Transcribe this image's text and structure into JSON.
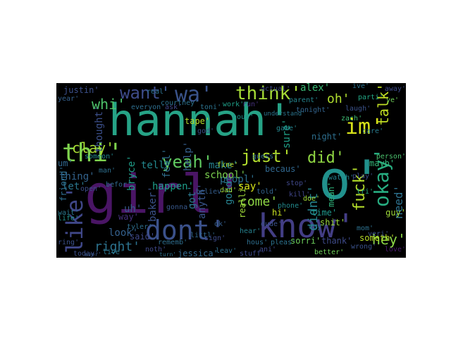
{
  "wordcloud": {
    "words": [
      {
        "text": "hannah'",
        "color": "#26a386"
      },
      {
        "text": "girl'",
        "color": "#4a1565"
      },
      {
        "text": "o'",
        "color": "#21918c"
      },
      {
        "text": "know'",
        "color": "#433e85"
      },
      {
        "text": "dont'",
        "color": "#3b518b"
      },
      {
        "text": "thi'",
        "color": "#7fd34e"
      },
      {
        "text": "like'",
        "color": "#3f4788"
      },
      {
        "text": "want'",
        "color": "#3e4c8a"
      },
      {
        "text": "wa'",
        "color": "#3a538b"
      },
      {
        "text": "think'",
        "color": "#a5db36"
      },
      {
        "text": "im'",
        "color": "#d8e219"
      },
      {
        "text": "just'",
        "color": "#b2dd2d"
      },
      {
        "text": "yeah'",
        "color": "#60ca60"
      },
      {
        "text": "did'",
        "color": "#90d743"
      },
      {
        "text": "okay'",
        "color": "#27ad81"
      },
      {
        "text": "fuck'",
        "color": "#b5de2b"
      },
      {
        "text": "talk'",
        "color": "#c2df23"
      },
      {
        "text": "whi'",
        "color": "#4ec36b"
      },
      {
        "text": "clay'",
        "color": "#a8db34"
      },
      {
        "text": "oh'",
        "color": "#b0dd2f"
      },
      {
        "text": "hey'",
        "color": "#8bd646"
      },
      {
        "text": "need'",
        "color": "#2d718e"
      },
      {
        "text": "right'",
        "color": "#2c728e"
      },
      {
        "text": "didnt'",
        "color": "#25848e"
      },
      {
        "text": "come'",
        "color": "#8ed645"
      },
      {
        "text": "alex'",
        "color": "#3aba76"
      },
      {
        "text": "peopl'",
        "color": "#2d708e"
      },
      {
        "text": "look'",
        "color": "#34608d"
      },
      {
        "text": "bryce'",
        "color": "#1f9e89"
      },
      {
        "text": "tell'",
        "color": "#23888e"
      },
      {
        "text": "school'",
        "color": "#7cd250"
      },
      {
        "text": "thought'",
        "color": "#3c4f8a"
      },
      {
        "text": "let'",
        "color": "#2a778e"
      },
      {
        "text": "sure'",
        "color": "#1fa188"
      },
      {
        "text": "say'",
        "color": "#d5e21a"
      },
      {
        "text": "got'",
        "color": "#2a788e"
      },
      {
        "text": "good'",
        "color": "#26818e"
      },
      {
        "text": "feel'",
        "color": "#2e6e8e"
      },
      {
        "text": "help'",
        "color": "#355f8d"
      },
      {
        "text": "make'",
        "color": "#26828e"
      },
      {
        "text": "happen'",
        "color": "#1e9c89"
      },
      {
        "text": "thing'",
        "color": "#33638d"
      },
      {
        "text": "uh'",
        "color": "#375a8c"
      },
      {
        "text": "baker'",
        "color": "#3b528b"
      },
      {
        "text": "anyth'",
        "color": "#39568c"
      },
      {
        "text": "said'",
        "color": "#3f4889"
      },
      {
        "text": "jessica'",
        "color": "#31688e"
      },
      {
        "text": "sorri'",
        "color": "#6ccd5a"
      },
      {
        "text": "thank'",
        "color": "#3e4a89"
      },
      {
        "text": "someth'",
        "color": "#b8de29"
      },
      {
        "text": "shit'",
        "color": "#9bd93c"
      },
      {
        "text": "mean'",
        "color": "#2fb47c"
      },
      {
        "text": "realli'",
        "color": "#a0da39"
      },
      {
        "text": "guy'",
        "color": "#9fda3a"
      },
      {
        "text": "friend'",
        "color": "#2e6d8e"
      },
      {
        "text": "way'",
        "color": "#46327e"
      },
      {
        "text": "justin'",
        "color": "#3c508b"
      },
      {
        "text": "tape'",
        "color": "#b5de2b"
      },
      {
        "text": "becaus'",
        "color": "#31678e"
      },
      {
        "text": "night'",
        "color": "#2e6f8e"
      },
      {
        "text": "time'",
        "color": "#1f988b"
      },
      {
        "text": "day'",
        "color": "#2c738e"
      },
      {
        "text": "hi'",
        "color": "#c8e020"
      },
      {
        "text": "mayb'",
        "color": "#35b779"
      },
      {
        "text": "person'",
        "color": "#4ac16d"
      },
      {
        "text": "ye'",
        "color": "#6ece58"
      },
      {
        "text": "away'",
        "color": "#3e4a89"
      },
      {
        "text": "ive'",
        "color": "#2c728e"
      },
      {
        "text": "parti'",
        "color": "#22a785"
      },
      {
        "text": "laugh'",
        "color": "#3b528b"
      },
      {
        "text": "zach'",
        "color": "#3fbc73"
      },
      {
        "text": "care'",
        "color": "#297b8e"
      },
      {
        "text": "veri'",
        "color": "#3b528b"
      },
      {
        "text": "love'",
        "color": "#481a6c"
      },
      {
        "text": "doe'",
        "color": "#a2da37"
      },
      {
        "text": "phone'",
        "color": "#238a8d"
      },
      {
        "text": "guess'",
        "color": "#2f6c8e"
      },
      {
        "text": "fine'",
        "color": "#b5de2b"
      },
      {
        "text": "work'",
        "color": "#1f9f88"
      },
      {
        "text": "toni'",
        "color": "#2c728e"
      },
      {
        "text": "dad'",
        "color": "#a5db36"
      },
      {
        "text": "man'",
        "color": "#2e6f8e"
      },
      {
        "text": "um'",
        "color": "#31688e"
      },
      {
        "text": "year'",
        "color": "#35608d"
      },
      {
        "text": "befor'",
        "color": "#30698e"
      },
      {
        "text": "open'",
        "color": "#3d4e8a"
      },
      {
        "text": "life'",
        "color": "#20938c"
      },
      {
        "text": "wait'",
        "color": "#2a788e"
      },
      {
        "text": "ring'",
        "color": "#3b518b"
      },
      {
        "text": "noth'",
        "color": "#3f4889"
      },
      {
        "text": "tyler'",
        "color": "#2e6f8e"
      },
      {
        "text": "actual'",
        "color": "#3f4788"
      },
      {
        "text": "parent'",
        "color": "#25858e"
      },
      {
        "text": "courtney'",
        "color": "#2c738e"
      },
      {
        "text": "everyon'",
        "color": "#2e6e8e"
      },
      {
        "text": "someon'",
        "color": "#23898e"
      },
      {
        "text": "play'",
        "color": "#3d4d8a"
      },
      {
        "text": "ani'",
        "color": "#3f4889"
      },
      {
        "text": "kill'",
        "color": "#404588"
      },
      {
        "text": "mom'",
        "color": "#2d718e"
      },
      {
        "text": "told'",
        "color": "#33638d"
      },
      {
        "text": "hear'",
        "color": "#26818e"
      },
      {
        "text": "rememb'",
        "color": "#2e6e8e"
      },
      {
        "text": "better'",
        "color": "#6ece58"
      },
      {
        "text": "believ'",
        "color": "#355e8d"
      },
      {
        "text": "today'",
        "color": "#3c4f8a"
      },
      {
        "text": "gonna'",
        "color": "#38598c"
      },
      {
        "text": "ask'",
        "color": "#404688"
      },
      {
        "text": "live'",
        "color": "#2a788e"
      },
      {
        "text": "run'",
        "color": "#46327e"
      },
      {
        "text": "turn'",
        "color": "#2d718e"
      },
      {
        "text": "stop'",
        "color": "#3f4788"
      },
      {
        "text": "ever'",
        "color": "#38588c"
      },
      {
        "text": "understand'",
        "color": "#2b758e"
      },
      {
        "text": "tri'",
        "color": "#25ab82"
      },
      {
        "text": "hous'",
        "color": "#2e6e8e"
      },
      {
        "text": "sign'",
        "color": "#3e4a89"
      },
      {
        "text": "pleas'",
        "color": "#2c728e"
      },
      {
        "text": "leav'",
        "color": "#2d708e"
      },
      {
        "text": "watch'",
        "color": "#25838e"
      },
      {
        "text": "ok'",
        "color": "#355e8d"
      },
      {
        "text": "dude'",
        "color": "#3b528b"
      },
      {
        "text": "game'",
        "color": "#24868e"
      },
      {
        "text": "real'",
        "color": "#2c718e"
      },
      {
        "text": "god'",
        "color": "#3c508b"
      },
      {
        "text": "tonight'",
        "color": "#33638d"
      },
      {
        "text": "hous'",
        "color": "#20928c"
      },
      {
        "text": "littl'",
        "color": "#31688e"
      },
      {
        "text": "wrong'",
        "color": "#3b518b"
      },
      {
        "text": "stuff'",
        "color": "#3e4989"
      }
    ]
  }
}
